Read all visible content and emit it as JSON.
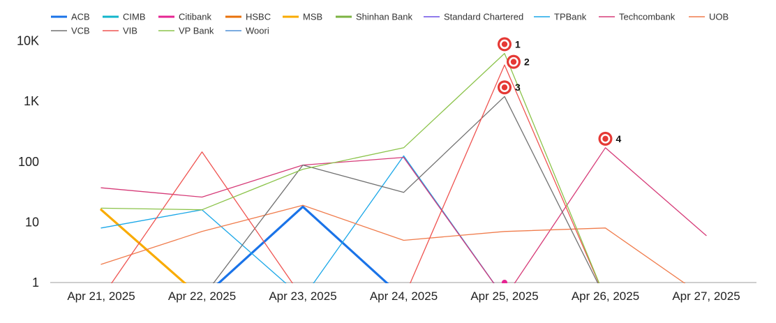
{
  "chart_data": {
    "type": "line",
    "title": "",
    "xlabel": "",
    "ylabel": "",
    "yscale": "log",
    "ylim": [
      1,
      10000
    ],
    "yticks": [
      {
        "value": 1,
        "label": "1"
      },
      {
        "value": 10,
        "label": "10"
      },
      {
        "value": 100,
        "label": "100"
      },
      {
        "value": 1000,
        "label": "1K"
      },
      {
        "value": 10000,
        "label": "10K"
      }
    ],
    "categories": [
      "Apr 21, 2025",
      "Apr 22, 2025",
      "Apr 23, 2025",
      "Apr 24, 2025",
      "Apr 25, 2025",
      "Apr 26, 2025",
      "Apr 27, 2025"
    ],
    "grid": false,
    "legend_position": "top",
    "series": [
      {
        "name": "ACB",
        "color": "#1a73e8",
        "bold": true,
        "values": [
          null,
          0.55,
          18,
          0.55,
          null,
          null,
          null
        ]
      },
      {
        "name": "CIMB",
        "color": "#12b5cb",
        "bold": true,
        "values": [
          null,
          null,
          null,
          null,
          null,
          null,
          null
        ]
      },
      {
        "name": "Citibank",
        "color": "#e52592",
        "bold": true,
        "values": [
          null,
          null,
          null,
          null,
          null,
          null,
          null
        ]
      },
      {
        "name": "HSBC",
        "color": "#e8710a",
        "bold": true,
        "values": [
          null,
          null,
          null,
          null,
          null,
          null,
          null
        ]
      },
      {
        "name": "MSB",
        "color": "#f9ab00",
        "bold": true,
        "values": [
          16,
          0.55,
          null,
          null,
          null,
          null,
          null
        ]
      },
      {
        "name": "Shinhan Bank",
        "color": "#7cb342",
        "bold": true,
        "values": [
          null,
          null,
          null,
          null,
          null,
          null,
          null
        ]
      },
      {
        "name": "Standard Chartered",
        "color": "#6b4ee6",
        "bold": false,
        "values": [
          null,
          null,
          null,
          118,
          0.55,
          null,
          null
        ]
      },
      {
        "name": "TPBank",
        "color": "#1aa7e8",
        "bold": false,
        "values": [
          8,
          16,
          0.55,
          125,
          0.55,
          null,
          null
        ]
      },
      {
        "name": "Techcombank",
        "color": "#d63b78",
        "bold": false,
        "values": [
          37,
          26,
          88,
          118,
          0.55,
          170,
          6
        ]
      },
      {
        "name": "UOB",
        "color": "#f07c4c",
        "bold": false,
        "values": [
          2,
          7,
          19,
          5,
          7,
          8,
          0.55
        ]
      },
      {
        "name": "VCB",
        "color": "#707070",
        "bold": false,
        "values": [
          null,
          0.55,
          88,
          31,
          1200,
          0.55,
          null
        ]
      },
      {
        "name": "VIB",
        "color": "#ef5350",
        "bold": false,
        "values": [
          0.55,
          145,
          0.55,
          0.55,
          4000,
          0.55,
          null
        ]
      },
      {
        "name": "VP Bank",
        "color": "#8bc34a",
        "bold": false,
        "values": [
          17,
          16,
          75,
          170,
          6200,
          0.55,
          null
        ]
      },
      {
        "name": "Woori",
        "color": "#4f8fd6",
        "bold": false,
        "values": [
          null,
          null,
          null,
          null,
          null,
          null,
          null
        ]
      }
    ],
    "annotations": [
      {
        "label": "1",
        "x": "Apr 25, 2025",
        "y": 8800,
        "label_side": "right"
      },
      {
        "label": "2",
        "x": "Apr 25, 2025",
        "y": 4500,
        "label_side": "right"
      },
      {
        "label": "3",
        "x": "Apr 25, 2025",
        "y": 1700,
        "label_side": "right"
      },
      {
        "label": "4",
        "x": "Apr 26, 2025",
        "y": 240,
        "label_side": "right"
      }
    ]
  }
}
